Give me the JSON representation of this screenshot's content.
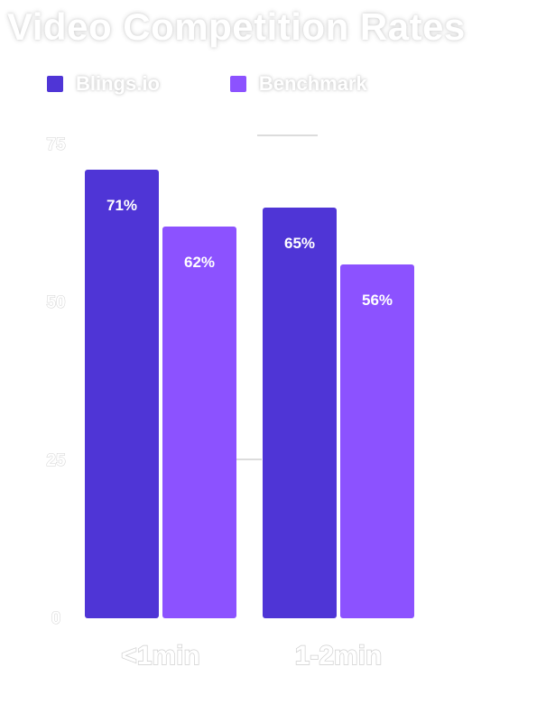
{
  "chart_data": {
    "type": "bar",
    "title": "Video Competition Rates",
    "categories": [
      "<1min",
      "1-2min"
    ],
    "series": [
      {
        "name": "Blings.io",
        "values": [
          71,
          65
        ],
        "labels": [
          "71%",
          "65%"
        ],
        "color": "#4f35d6"
      },
      {
        "name": "Benchmark",
        "values": [
          62,
          56
        ],
        "labels": [
          "62%",
          "56%"
        ],
        "color": "#8c52ff"
      }
    ],
    "yticks": [
      0,
      25,
      50,
      75
    ],
    "ytick_labels": [
      "0",
      "25",
      "50",
      "75"
    ],
    "ylim": [
      0,
      75
    ],
    "grid": false,
    "legend_placement": "top-left"
  }
}
